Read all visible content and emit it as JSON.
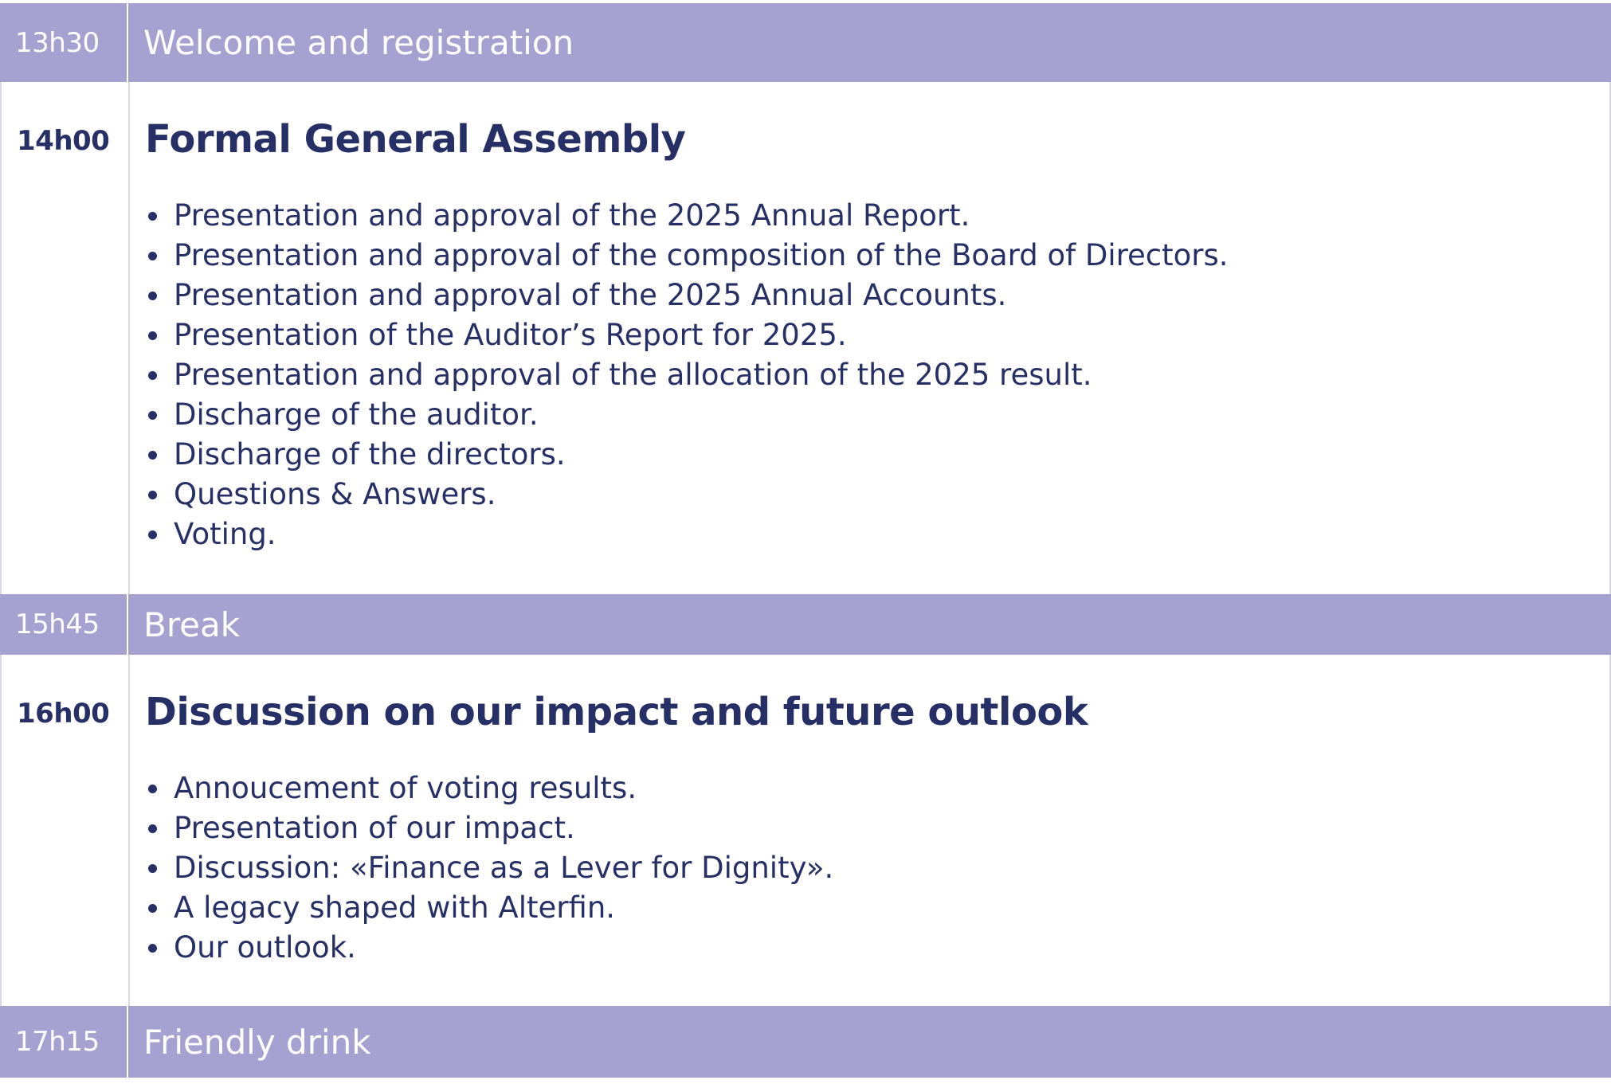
{
  "agenda": [
    {
      "type": "band",
      "time": "13h30",
      "title": "Welcome and registration"
    },
    {
      "type": "session",
      "time": "14h00",
      "title": "Formal General Assembly",
      "items": [
        "Presentation and approval of the 2025 Annual Report.",
        "Presentation and approval of the composition of the Board of Directors.",
        "Presentation and approval of the 2025 Annual Accounts.",
        "Presentation of the Auditor’s Report for 2025.",
        "Presentation and approval of the allocation of the 2025 result.",
        "Discharge of the auditor.",
        "Discharge of the directors.",
        "Questions & Answers.",
        "Voting."
      ]
    },
    {
      "type": "band",
      "time": "15h45",
      "title": "Break"
    },
    {
      "type": "session",
      "time": "16h00",
      "title": "Discussion on our impact and future outlook",
      "items": [
        "Annoucement of voting results.",
        "Presentation of our impact.",
        "Discussion: «Finance as a Lever for Dignity».",
        "A legacy shaped with Alterfin.",
        "Our outlook."
      ]
    },
    {
      "type": "band",
      "time": "17h15",
      "title": "Friendly drink"
    }
  ],
  "colors": {
    "band_background": "#a5a2d2",
    "band_text": "#ffffff",
    "session_text": "#263066",
    "divider": "#d9d8e8"
  }
}
